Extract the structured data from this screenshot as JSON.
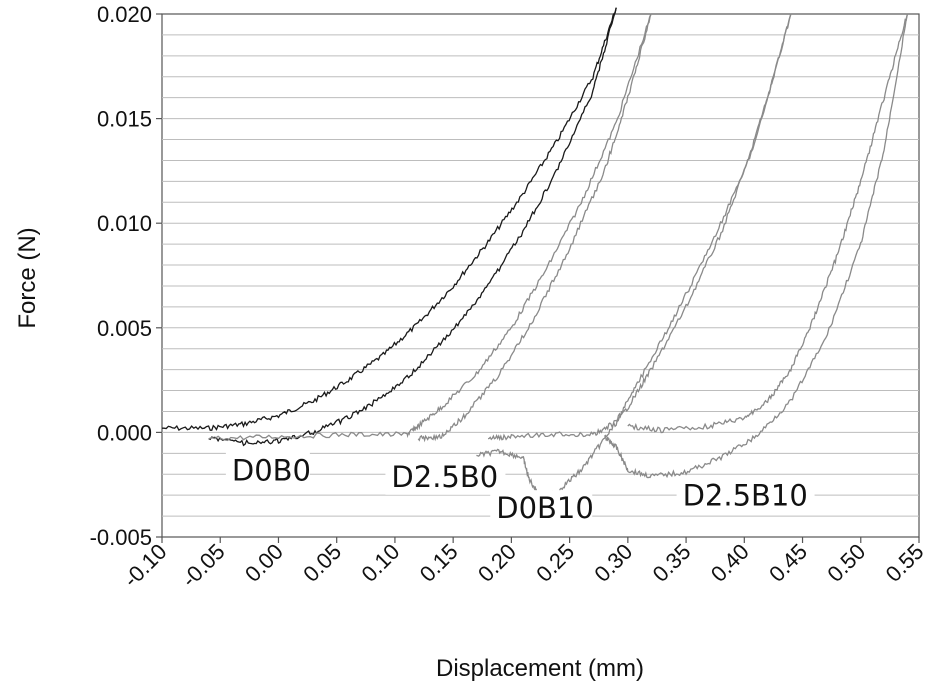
{
  "chart_data": {
    "type": "line",
    "xlabel": "Displacement (mm)",
    "ylabel": "Force (N)",
    "xlim": [
      -0.1,
      0.55
    ],
    "ylim": [
      -0.005,
      0.02
    ],
    "x_ticks": [
      "-0.10",
      "-0.05",
      "0.00",
      "0.05",
      "0.10",
      "0.15",
      "0.20",
      "0.25",
      "0.30",
      "0.35",
      "0.40",
      "0.45",
      "0.50",
      "0.55"
    ],
    "y_ticks": [
      "0.020",
      "0.015",
      "0.010",
      "0.005",
      "0.000",
      "-0.005"
    ],
    "grid": "horizontal",
    "series": [
      {
        "name": "D0B0",
        "color": "#1a1a1a",
        "loading": [
          [
            -0.1,
            0.0002
          ],
          [
            -0.06,
            0.0002
          ],
          [
            -0.03,
            0.0004
          ],
          [
            0.0,
            0.0008
          ],
          [
            0.03,
            0.0015
          ],
          [
            0.06,
            0.0025
          ],
          [
            0.09,
            0.0037
          ],
          [
            0.12,
            0.0052
          ],
          [
            0.15,
            0.007
          ],
          [
            0.18,
            0.0091
          ],
          [
            0.21,
            0.0114
          ],
          [
            0.24,
            0.014
          ],
          [
            0.27,
            0.017
          ],
          [
            0.29,
            0.0203
          ]
        ],
        "unloading": [
          [
            0.29,
            0.0203
          ],
          [
            0.27,
            0.0163
          ],
          [
            0.24,
            0.0126
          ],
          [
            0.21,
            0.0096
          ],
          [
            0.18,
            0.007
          ],
          [
            0.15,
            0.0049
          ],
          [
            0.12,
            0.0031
          ],
          [
            0.09,
            0.0017
          ],
          [
            0.06,
            0.0007
          ],
          [
            0.03,
            0.0
          ],
          [
            0.0,
            -0.0004
          ],
          [
            -0.03,
            -0.0005
          ],
          [
            -0.06,
            -0.0003
          ]
        ]
      },
      {
        "name": "D2.5B0",
        "color": "#8a8a8a",
        "loading": [
          [
            -0.06,
            -0.0003
          ],
          [
            0.0,
            -0.0002
          ],
          [
            0.06,
            -0.0001
          ],
          [
            0.11,
            -0.0001
          ],
          [
            0.12,
            0.0003
          ],
          [
            0.14,
            0.0012
          ],
          [
            0.17,
            0.0028
          ],
          [
            0.2,
            0.005
          ],
          [
            0.23,
            0.0078
          ],
          [
            0.26,
            0.011
          ],
          [
            0.29,
            0.0148
          ],
          [
            0.32,
            0.02
          ]
        ],
        "unloading": [
          [
            0.32,
            0.02
          ],
          [
            0.3,
            0.016
          ],
          [
            0.28,
            0.0125
          ],
          [
            0.25,
            0.0088
          ],
          [
            0.22,
            0.0055
          ],
          [
            0.19,
            0.0028
          ],
          [
            0.16,
            0.0008
          ],
          [
            0.14,
            -0.0002
          ],
          [
            0.12,
            -0.0003
          ]
        ]
      },
      {
        "name": "D0B10",
        "color": "#8a8a8a",
        "loading": [
          [
            0.17,
            -0.0011
          ],
          [
            0.19,
            -0.0009
          ],
          [
            0.21,
            -0.0012
          ],
          [
            0.215,
            -0.0022
          ],
          [
            0.225,
            -0.0031
          ],
          [
            0.24,
            -0.0028
          ],
          [
            0.26,
            -0.0018
          ],
          [
            0.28,
            -0.0003
          ],
          [
            0.3,
            0.0012
          ],
          [
            0.32,
            0.003
          ],
          [
            0.35,
            0.006
          ],
          [
            0.38,
            0.0095
          ],
          [
            0.41,
            0.014
          ],
          [
            0.44,
            0.02
          ]
        ],
        "unloading": [
          [
            0.44,
            0.02
          ],
          [
            0.42,
            0.016
          ],
          [
            0.4,
            0.0125
          ],
          [
            0.37,
            0.0088
          ],
          [
            0.34,
            0.0055
          ],
          [
            0.31,
            0.0025
          ],
          [
            0.29,
            0.0005
          ],
          [
            0.27,
            -0.0001
          ],
          [
            0.24,
            -0.0001
          ],
          [
            0.2,
            -0.0002
          ],
          [
            0.18,
            -0.0003
          ]
        ]
      },
      {
        "name": "D2.5B10",
        "color": "#8a8a8a",
        "loading": [
          [
            0.28,
            -0.0002
          ],
          [
            0.29,
            -0.0007
          ],
          [
            0.3,
            -0.0018
          ],
          [
            0.32,
            -0.0021
          ],
          [
            0.35,
            -0.0019
          ],
          [
            0.38,
            -0.0012
          ],
          [
            0.41,
            -0.0002
          ],
          [
            0.44,
            0.0015
          ],
          [
            0.47,
            0.0045
          ],
          [
            0.5,
            0.009
          ],
          [
            0.52,
            0.0135
          ],
          [
            0.54,
            0.02
          ]
        ],
        "unloading": [
          [
            0.54,
            0.02
          ],
          [
            0.52,
            0.016
          ],
          [
            0.5,
            0.012
          ],
          [
            0.48,
            0.0085
          ],
          [
            0.46,
            0.0055
          ],
          [
            0.44,
            0.003
          ],
          [
            0.42,
            0.0015
          ],
          [
            0.4,
            0.0007
          ],
          [
            0.37,
            0.0003
          ],
          [
            0.33,
            0.0001
          ],
          [
            0.3,
            0.0003
          ]
        ]
      }
    ],
    "annotations": [
      {
        "text": "D0B0",
        "x": -0.04,
        "y": -0.0023
      },
      {
        "text": "D2.5B0",
        "x": 0.097,
        "y": -0.0026
      },
      {
        "text": "D0B10",
        "x": 0.187,
        "y": -0.0041
      },
      {
        "text": "D2.5B10",
        "x": 0.347,
        "y": -0.0035
      }
    ]
  }
}
